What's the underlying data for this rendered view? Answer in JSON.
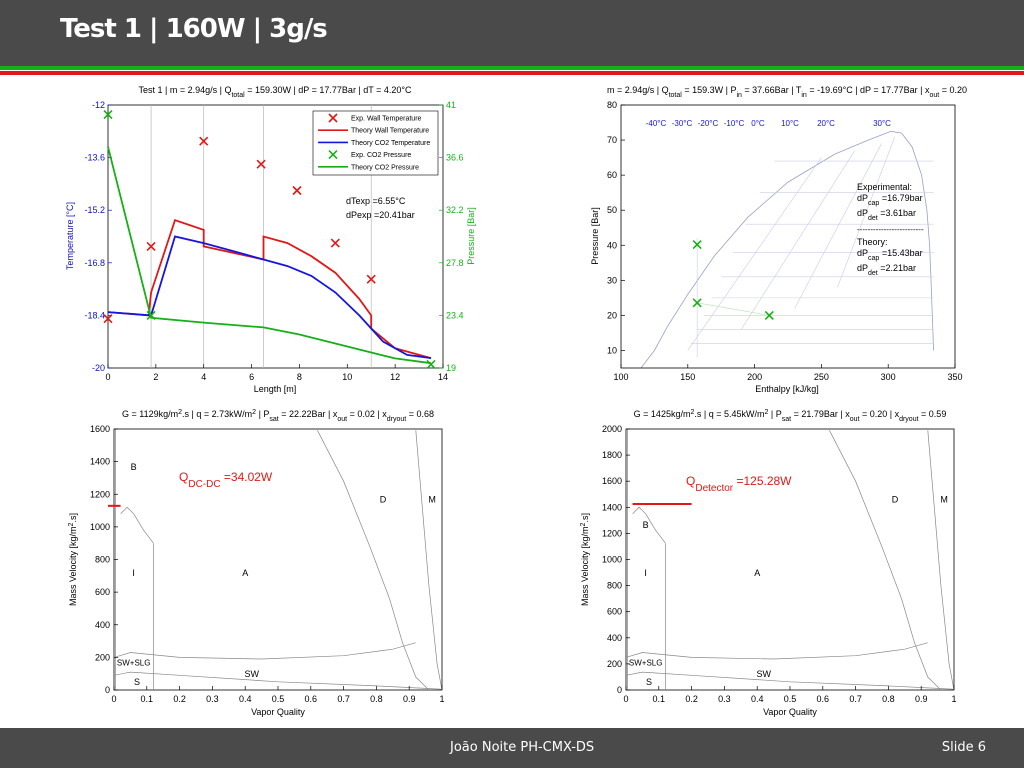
{
  "slide": {
    "title": "Test 1 |  160W | 3g/s",
    "footer_author": "João Noite PH-CMX-DS",
    "footer_slide": "Slide 6"
  },
  "colors": {
    "header": "#4a4a4a",
    "green": "#16b016",
    "red": "#e01818",
    "blue": "#1515e0",
    "axis_blue": "#1010c0"
  },
  "chart_data": [
    {
      "id": "temperature-pressure",
      "type": "line+scatter",
      "title": "Test 1 | m = 2.94g/s | Qtotal = 159.30W | dP = 17.77Bar | dT = 4.20°C",
      "xlabel": "Length [m]",
      "ylabel_left": "Temperature [°C]",
      "ylabel_right": "Pressure [Bar]",
      "xlim": [
        0,
        14
      ],
      "ylim_left": [
        -20,
        -12
      ],
      "ylim_right": [
        19,
        41
      ],
      "x_ticks": [
        0,
        2,
        4,
        6,
        8,
        10,
        12,
        14
      ],
      "y_ticks_left": [
        "-12",
        "-13.6",
        "-15.2",
        "-16.8",
        "-18.4",
        "-20"
      ],
      "y_ticks_right": [
        "41",
        "36.6",
        "32.2",
        "27.8",
        "23.4",
        "19"
      ],
      "vertical_lines_x": [
        1.8,
        4.0,
        6.5,
        11.0
      ],
      "legend": [
        "Exp. Wall Temperature",
        "Theory  Wall Temperature",
        "Theory  CO2 Temperature",
        "Exp. CO2 Pressure",
        "Theory  CO2 Pressure"
      ],
      "annotations": [
        "dTexp =6.55°C",
        "dPexp =20.41bar"
      ],
      "series": [
        {
          "name": "Exp. Wall Temperature",
          "axis": "left",
          "marker": "x",
          "color": "#e01818",
          "points": [
            [
              0,
              -18.5
            ],
            [
              1.8,
              -16.3
            ],
            [
              4.0,
              -13.1
            ],
            [
              6.4,
              -13.8
            ],
            [
              7.9,
              -14.6
            ],
            [
              9.5,
              -16.2
            ],
            [
              11.0,
              -17.3
            ]
          ]
        },
        {
          "name": "Theory  Wall Temperature",
          "axis": "left",
          "color": "#e01818",
          "points": [
            [
              0,
              -18.3
            ],
            [
              1.7,
              -18.4
            ],
            [
              1.8,
              -17.7
            ],
            [
              2.8,
              -15.5
            ],
            [
              4.0,
              -15.8
            ],
            [
              4.0,
              -16.3
            ],
            [
              6.5,
              -16.7
            ],
            [
              6.5,
              -16.0
            ],
            [
              7.5,
              -16.2
            ],
            [
              8.5,
              -16.6
            ],
            [
              9.5,
              -17.1
            ],
            [
              10.5,
              -17.9
            ],
            [
              11.0,
              -18.4
            ],
            [
              11.0,
              -18.8
            ],
            [
              12.0,
              -19.4
            ],
            [
              13.5,
              -19.7
            ]
          ]
        },
        {
          "name": "Theory  CO2 Temperature",
          "axis": "left",
          "color": "#1515e0",
          "points": [
            [
              0,
              -18.3
            ],
            [
              1.8,
              -18.4
            ],
            [
              2.8,
              -16.0
            ],
            [
              4.0,
              -16.2
            ],
            [
              5.5,
              -16.5
            ],
            [
              6.5,
              -16.7
            ],
            [
              7.5,
              -16.9
            ],
            [
              8.5,
              -17.2
            ],
            [
              9.5,
              -17.7
            ],
            [
              10.5,
              -18.4
            ],
            [
              11.5,
              -19.2
            ],
            [
              12.5,
              -19.6
            ],
            [
              13.5,
              -19.7
            ]
          ]
        },
        {
          "name": "Exp. CO2 Pressure",
          "axis": "right",
          "marker": "x",
          "color": "#16b016",
          "points": [
            [
              0,
              40.2
            ],
            [
              1.8,
              23.4
            ],
            [
              13.5,
              19.3
            ]
          ]
        },
        {
          "name": "Theory  CO2 Pressure",
          "axis": "right",
          "color": "#16b016",
          "points": [
            [
              0,
              37.5
            ],
            [
              1.8,
              23.2
            ],
            [
              4.0,
              22.8
            ],
            [
              6.5,
              22.4
            ],
            [
              8.0,
              21.8
            ],
            [
              10.0,
              20.8
            ],
            [
              12.0,
              19.8
            ],
            [
              13.5,
              19.4
            ]
          ]
        }
      ]
    },
    {
      "id": "ph-diagram",
      "type": "line+scatter",
      "title": "m = 2.94g/s | Qtotal = 159.3W | Pin = 37.66Bar | Tin = -19.69°C | dP = 17.77Bar | xout = 0.20",
      "xlabel": "Enthalpy [kJ/kg]",
      "ylabel": "Pressure [Bar]",
      "xlim": [
        100,
        350
      ],
      "ylim": [
        5,
        80
      ],
      "x_ticks": [
        100,
        150,
        200,
        250,
        300,
        350
      ],
      "y_ticks": [
        10,
        20,
        30,
        40,
        50,
        60,
        70,
        80
      ],
      "isotherm_labels": [
        "-40°C",
        "-30°C",
        "-20°C",
        "-10°C",
        "0°C",
        "10°C",
        "20°C",
        "30°C"
      ],
      "annotations": [
        "Experimental:",
        "dPcap =16.79bar",
        "dPdet =3.61bar",
        "-------------------------",
        "Theory:",
        "dPcap =15.43bar",
        "dPdet =2.21bar"
      ],
      "series": [
        {
          "name": "Experimental points",
          "marker": "x",
          "color": "#16b016",
          "points": [
            [
              157,
              40.2
            ],
            [
              157,
              23.6
            ],
            [
              211,
              20.0
            ]
          ]
        }
      ]
    },
    {
      "id": "flow-map-1",
      "type": "flow-pattern-map",
      "title": "G = 1129kg/m2.s | q = 2.73kW/m2 | Psat = 22.22Bar | xout = 0.02 | xdryout = 0.68",
      "xlabel": "Vapor Quality",
      "ylabel": "Mass Velocity [kg/m2.s]",
      "xlim": [
        0,
        1
      ],
      "ylim": [
        0,
        1600
      ],
      "x_ticks": [
        "0",
        "0.1",
        "0.2",
        "0.3",
        "0.4",
        "0.5",
        "0.6",
        "0.7",
        "0.8",
        "0.9",
        "1"
      ],
      "y_ticks": [
        0,
        200,
        400,
        600,
        800,
        1000,
        1200,
        1400,
        1600
      ],
      "regions": [
        "B",
        "I",
        "A",
        "D",
        "M",
        "SW+SLG",
        "SW",
        "S"
      ],
      "heat_label": "QDC-DC =34.02W",
      "operating_line": {
        "x": [
          0,
          0.02
        ],
        "G": 1129
      }
    },
    {
      "id": "flow-map-2",
      "type": "flow-pattern-map",
      "title": "G = 1425kg/m2.s | q = 5.45kW/m2 | Psat = 21.79Bar | xout = 0.20 | xdryout = 0.59",
      "xlabel": "Vapor Quality",
      "ylabel": "Mass Velocity [kg/m2.s]",
      "xlim": [
        0,
        1
      ],
      "ylim": [
        0,
        2000
      ],
      "x_ticks": [
        "0",
        "0.1",
        "0.2",
        "0.3",
        "0.4",
        "0.5",
        "0.6",
        "0.7",
        "0.8",
        "0.9",
        "1"
      ],
      "y_ticks": [
        0,
        200,
        400,
        600,
        800,
        1000,
        1200,
        1400,
        1600,
        1800,
        2000
      ],
      "regions": [
        "B",
        "I",
        "A",
        "D",
        "M",
        "SW+SLG",
        "SW",
        "S"
      ],
      "heat_label": "QDetector =125.28W",
      "operating_line": {
        "x": [
          0.02,
          0.2
        ],
        "G": 1425
      }
    }
  ]
}
